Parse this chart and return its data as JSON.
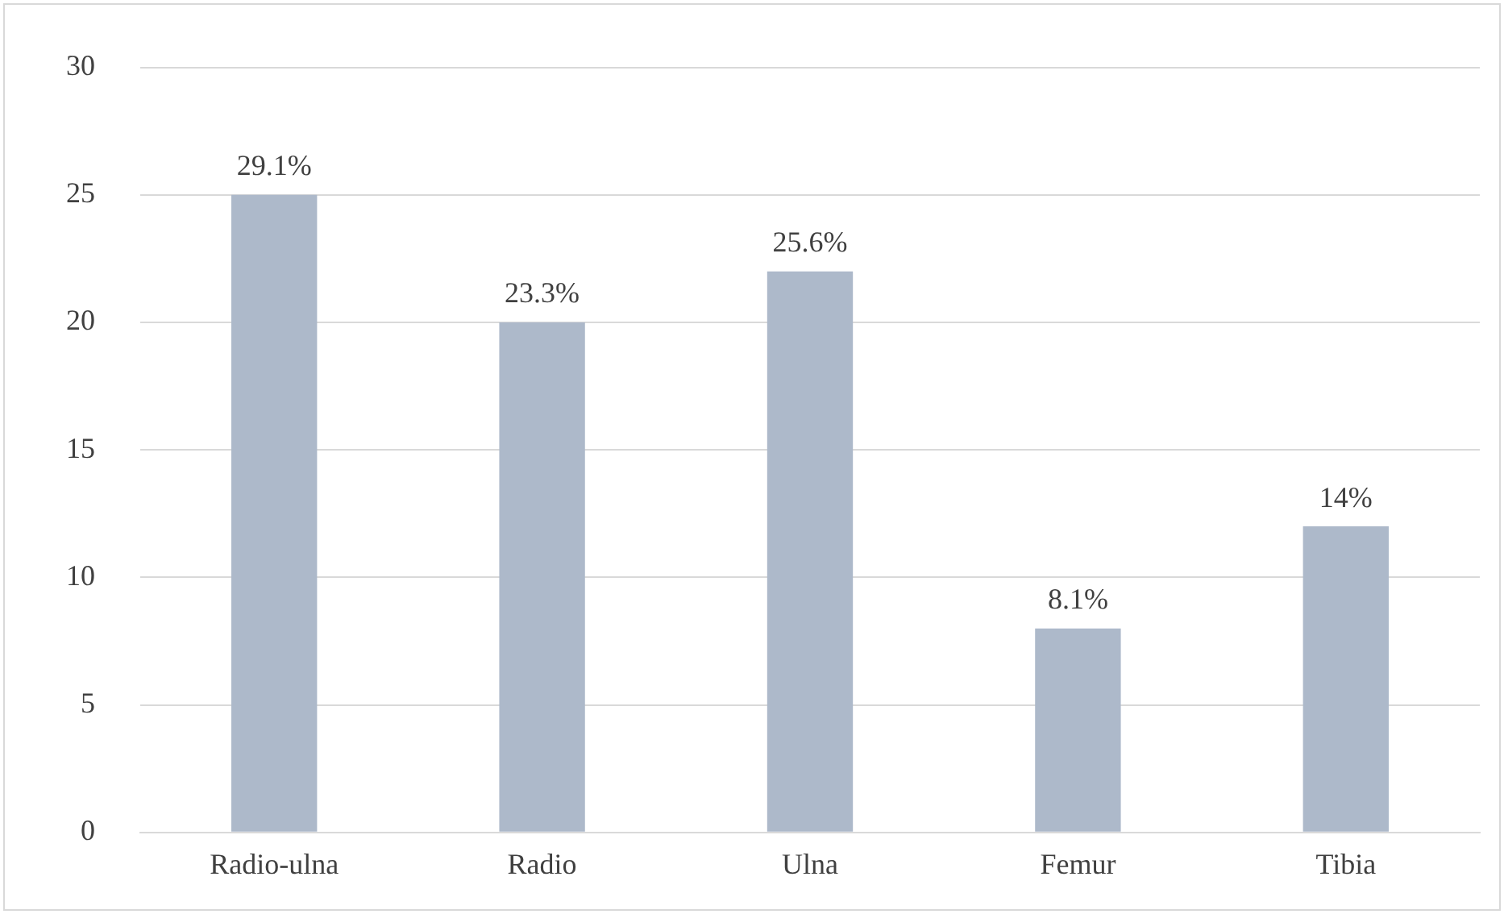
{
  "chart_data": {
    "type": "bar",
    "categories": [
      "Radio-ulna",
      "Radio",
      "Ulna",
      "Femur",
      "Tibia"
    ],
    "values": [
      25,
      20,
      22,
      8,
      12
    ],
    "annotations": [
      {
        "text": "29.1%",
        "x": "Radio-ulna",
        "y": 25
      },
      {
        "text": "23.3%",
        "x": "Radio",
        "y": 20
      },
      {
        "text": "25.6%",
        "x": "Ulna",
        "y": 22
      },
      {
        "text": "8.1%",
        "x": "Femur",
        "y": 8
      },
      {
        "text": "14%",
        "x": "Tibia",
        "y": 12
      }
    ],
    "color": "#adb9ca",
    "ylim": [
      0,
      30
    ],
    "yticks": [
      0,
      5,
      10,
      15,
      20,
      25,
      30
    ],
    "grid": "y",
    "legend": false
  }
}
